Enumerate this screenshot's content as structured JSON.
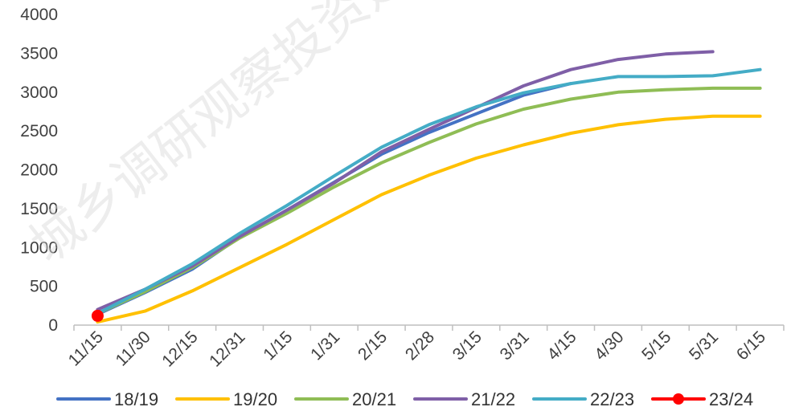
{
  "watermark": "城乡调研观察投资建议",
  "chart_data": {
    "type": "line",
    "title": "",
    "xlabel": "",
    "ylabel": "",
    "categories": [
      "11/15",
      "11/30",
      "12/15",
      "12/31",
      "1/15",
      "1/31",
      "2/15",
      "2/28",
      "3/15",
      "3/31",
      "4/15",
      "4/30",
      "5/15",
      "5/31",
      "6/15"
    ],
    "ylim": [
      0,
      4000
    ],
    "yticks": [
      0,
      500,
      1000,
      1500,
      2000,
      2500,
      3000,
      3500,
      4000
    ],
    "grid": false,
    "legend_position": "bottom",
    "series": [
      {
        "name": "18/19",
        "color": "#4472c4",
        "marker": false,
        "values": [
          140,
          420,
          720,
          1130,
          1480,
          1840,
          2200,
          2480,
          2720,
          2960,
          3110,
          null,
          null,
          null,
          null
        ]
      },
      {
        "name": "19/20",
        "color": "#ffc000",
        "marker": false,
        "values": [
          40,
          180,
          440,
          740,
          1040,
          1360,
          1680,
          1930,
          2150,
          2320,
          2470,
          2580,
          2650,
          2690,
          2690
        ]
      },
      {
        "name": "20/21",
        "color": "#8fbd55",
        "marker": false,
        "values": [
          150,
          430,
          740,
          1120,
          1440,
          1780,
          2090,
          2350,
          2590,
          2780,
          2910,
          3000,
          3030,
          3050,
          3050
        ]
      },
      {
        "name": "21/22",
        "color": "#7f5fa7",
        "marker": false,
        "values": [
          200,
          460,
          760,
          1140,
          1480,
          1830,
          2230,
          2520,
          2800,
          3080,
          3290,
          3420,
          3490,
          3520,
          null
        ]
      },
      {
        "name": "22/23",
        "color": "#44acc6",
        "marker": false,
        "values": [
          150,
          460,
          790,
          1180,
          1540,
          1920,
          2290,
          2580,
          2810,
          2990,
          3110,
          3200,
          3200,
          3210,
          3290
        ]
      },
      {
        "name": "23/24",
        "color": "#ff0000",
        "marker": true,
        "values": [
          120,
          null,
          null,
          null,
          null,
          null,
          null,
          null,
          null,
          null,
          null,
          null,
          null,
          null,
          null
        ]
      }
    ]
  }
}
